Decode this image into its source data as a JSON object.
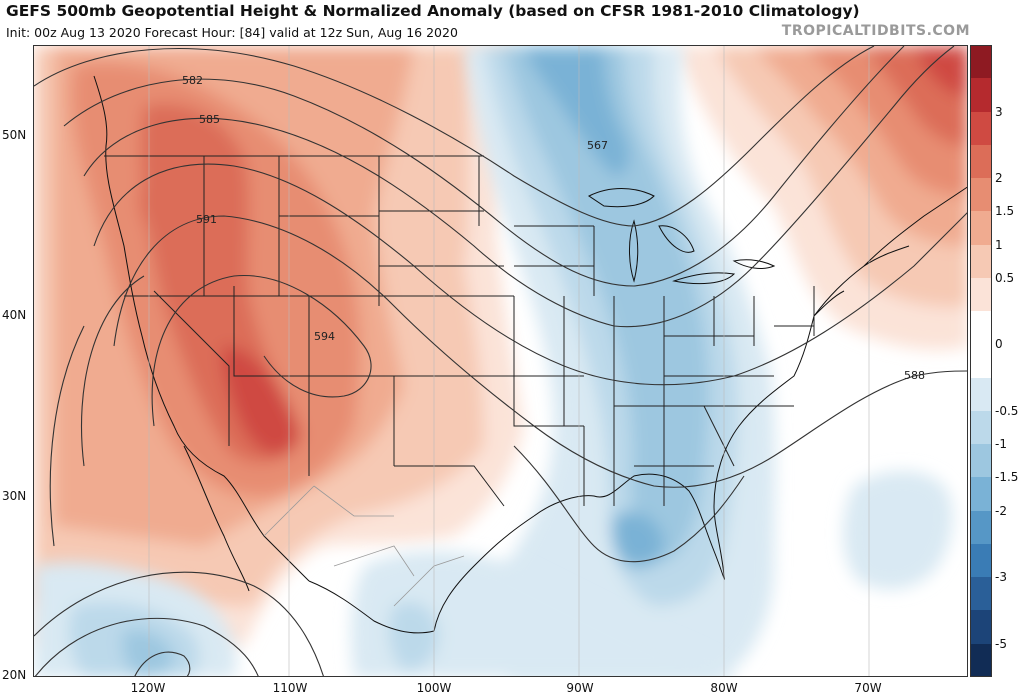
{
  "header": {
    "title": "GEFS 500mb Geopotential Height & Normalized Anomaly (based on CFSR 1981-2010 Climatology)",
    "subtitle": "Init: 00z Aug 13 2020   Forecast Hour: [84]   valid at 12z Sun, Aug 16 2020",
    "brand": "TROPICALTIDBITS.COM"
  },
  "map": {
    "latitude_labels": [
      "50N",
      "40N",
      "30N",
      "20N"
    ],
    "longitude_labels": [
      "120W",
      "110W",
      "100W",
      "90W",
      "80W",
      "70W"
    ],
    "contour_labels": [
      "582",
      "585",
      "591",
      "594",
      "567",
      "588"
    ]
  },
  "colorbar": {
    "labels": [
      "3",
      "2",
      "1.5",
      "1",
      "0.5",
      "0",
      "-0.5",
      "-1",
      "-1.5",
      "-2",
      "-3",
      "-5"
    ],
    "colors": [
      "#8e1a22",
      "#b52a2e",
      "#cf4a42",
      "#dc6d58",
      "#e78d72",
      "#f0ab90",
      "#f6c9b4",
      "#fbe3d8",
      "#ffffff",
      "#ffffff",
      "#d9e9f3",
      "#bcd9ea",
      "#9dc7e0",
      "#7ab2d6",
      "#5697c6",
      "#3a7cb5",
      "#2a5f98",
      "#1c4478",
      "#112c55"
    ]
  }
}
